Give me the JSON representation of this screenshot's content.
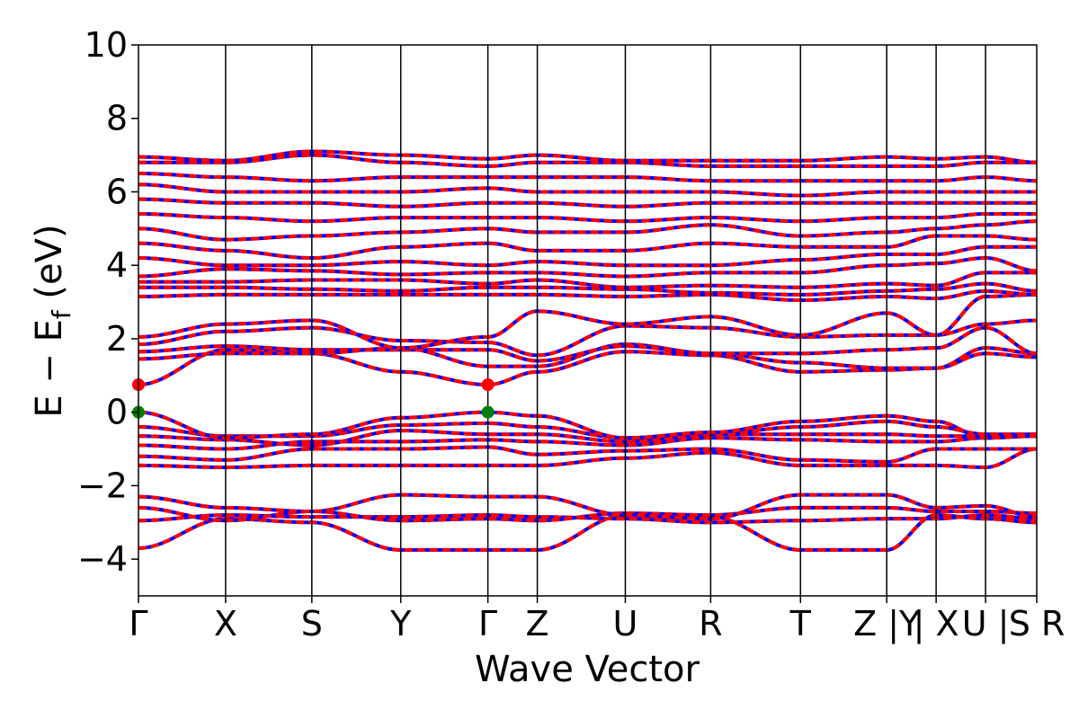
{
  "chart_data": {
    "type": "line",
    "xlabel": "Wave Vector",
    "ylabel": "E − E_f (eV)",
    "ylabel_main": "E  −  E",
    "ylabel_sub": "f",
    "ylabel_unit": "(eV)",
    "ylim": [
      -5,
      10
    ],
    "yticks": [
      -4,
      -2,
      0,
      2,
      4,
      6,
      8,
      10
    ],
    "ytick_labels": [
      "−4",
      "−2",
      "0",
      "2",
      "4",
      "6",
      "8",
      "10"
    ],
    "xlim": [
      0,
      10
    ],
    "kpoints": [
      {
        "x": 0.0,
        "label": "Γ"
      },
      {
        "x": 0.97,
        "label": "X"
      },
      {
        "x": 1.93,
        "label": "S"
      },
      {
        "x": 2.92,
        "label": "Y"
      },
      {
        "x": 3.89,
        "label": "Γ"
      },
      {
        "x": 4.44,
        "label": "Z"
      },
      {
        "x": 5.42,
        "label": "U"
      },
      {
        "x": 6.37,
        "label": "R"
      },
      {
        "x": 7.37,
        "label": "T"
      },
      {
        "x": 8.33,
        "label": "Z |Y"
      },
      {
        "x": 8.88,
        "label": "| X"
      },
      {
        "x": 9.43,
        "label": "U |"
      },
      {
        "x": 10.0,
        "label": "S R"
      }
    ],
    "line_colors": {
      "primary": "#ff0000",
      "secondary": "#0000ff"
    },
    "markers": [
      {
        "name": "CBM",
        "x": 0.0,
        "y": 0.75,
        "color": "#ff0000"
      },
      {
        "name": "CBM",
        "x": 3.89,
        "y": 0.75,
        "color": "#ff0000"
      },
      {
        "name": "VBM",
        "x": 0.0,
        "y": 0.0,
        "color": "#008000"
      },
      {
        "name": "VBM",
        "x": 3.89,
        "y": 0.0,
        "color": "#008000"
      }
    ],
    "bands": [
      {
        "name": "band-v1",
        "values": [
          -3.7,
          -2.9,
          -3.0,
          -3.75,
          -3.75,
          -3.75,
          -2.8,
          -2.85,
          -3.75,
          -3.75,
          -2.8,
          -2.9,
          -3.0
        ]
      },
      {
        "name": "band-v2",
        "values": [
          -2.95,
          -2.8,
          -2.85,
          -2.85,
          -2.8,
          -2.85,
          -2.9,
          -3.0,
          -2.95,
          -2.9,
          -2.9,
          -2.8,
          -2.9
        ]
      },
      {
        "name": "band-v3",
        "values": [
          -2.6,
          -2.95,
          -2.7,
          -2.95,
          -2.9,
          -2.95,
          -2.75,
          -2.8,
          -2.6,
          -2.6,
          -2.7,
          -2.7,
          -2.75
        ]
      },
      {
        "name": "band-v4",
        "values": [
          -2.3,
          -2.6,
          -2.7,
          -2.25,
          -2.3,
          -2.3,
          -2.8,
          -2.9,
          -2.25,
          -2.25,
          -2.6,
          -2.55,
          -2.85
        ]
      },
      {
        "name": "band-v5",
        "values": [
          -1.45,
          -1.5,
          -1.45,
          -1.45,
          -1.45,
          -1.45,
          -1.25,
          -1.1,
          -1.45,
          -1.45,
          -1.45,
          -1.5,
          -1.0
        ]
      },
      {
        "name": "band-v6",
        "values": [
          -1.2,
          -1.3,
          -1.0,
          -1.0,
          -0.95,
          -1.15,
          -1.05,
          -1.0,
          -1.3,
          -1.35,
          -1.0,
          -1.0,
          -1.0
        ]
      },
      {
        "name": "band-v7",
        "values": [
          -0.9,
          -1.0,
          -0.8,
          -0.8,
          -0.75,
          -0.8,
          -0.9,
          -0.7,
          -0.75,
          -0.8,
          -0.8,
          -0.7,
          -0.65
        ]
      },
      {
        "name": "band-v8",
        "values": [
          -0.65,
          -0.75,
          -0.9,
          -0.5,
          -0.6,
          -0.6,
          -0.8,
          -0.6,
          -0.6,
          -0.6,
          -0.65,
          -0.65,
          -0.65
        ]
      },
      {
        "name": "band-v9",
        "values": [
          -0.4,
          -0.65,
          -0.65,
          -0.35,
          -0.3,
          -0.4,
          -0.7,
          -0.6,
          -0.4,
          -0.25,
          -0.4,
          -0.6,
          -0.6
        ]
      },
      {
        "name": "band-v10",
        "values": [
          0.0,
          -0.7,
          -0.6,
          -0.15,
          0.0,
          -0.1,
          -0.7,
          -0.55,
          -0.25,
          -0.1,
          -0.25,
          -0.7,
          -0.6
        ]
      },
      {
        "name": "band-c1",
        "values": [
          0.75,
          1.7,
          1.6,
          1.1,
          0.75,
          1.1,
          1.65,
          1.55,
          1.1,
          1.15,
          1.2,
          1.6,
          1.5
        ]
      },
      {
        "name": "band-c2",
        "values": [
          1.45,
          1.6,
          1.6,
          1.75,
          1.25,
          1.25,
          1.85,
          1.6,
          1.35,
          1.2,
          1.2,
          1.75,
          1.6
        ]
      },
      {
        "name": "band-c3",
        "values": [
          1.65,
          1.8,
          1.7,
          1.7,
          1.7,
          1.4,
          1.8,
          1.6,
          1.6,
          1.7,
          1.75,
          2.3,
          1.6
        ]
      },
      {
        "name": "band-c4",
        "values": [
          1.85,
          2.2,
          2.3,
          1.95,
          1.9,
          1.55,
          2.35,
          2.3,
          2.05,
          2.1,
          2.1,
          2.4,
          2.5
        ]
      },
      {
        "name": "band-c5",
        "values": [
          2.05,
          2.4,
          2.5,
          1.75,
          2.05,
          2.75,
          2.4,
          2.6,
          2.1,
          2.7,
          2.1,
          3.15,
          3.2
        ]
      },
      {
        "name": "band-c6",
        "values": [
          3.15,
          3.2,
          3.2,
          3.2,
          3.2,
          3.2,
          3.15,
          3.2,
          3.05,
          3.15,
          3.1,
          3.3,
          3.2
        ]
      },
      {
        "name": "band-c7",
        "values": [
          3.4,
          3.4,
          3.35,
          3.3,
          3.4,
          3.4,
          3.35,
          3.25,
          3.2,
          3.3,
          3.35,
          3.5,
          3.3
        ]
      },
      {
        "name": "band-c8",
        "values": [
          3.55,
          3.55,
          3.6,
          3.6,
          3.5,
          3.6,
          3.4,
          3.45,
          3.4,
          3.5,
          3.45,
          3.8,
          3.8
        ]
      },
      {
        "name": "band-c9",
        "values": [
          3.7,
          3.9,
          3.85,
          3.75,
          3.8,
          3.8,
          3.7,
          3.8,
          3.8,
          4.0,
          4.05,
          4.2,
          3.85
        ]
      },
      {
        "name": "band-c10",
        "values": [
          4.2,
          4.0,
          4.0,
          4.1,
          4.0,
          4.1,
          4.0,
          4.0,
          4.15,
          4.3,
          4.3,
          4.5,
          4.5
        ]
      },
      {
        "name": "band-c11",
        "values": [
          4.6,
          4.4,
          4.2,
          4.5,
          4.6,
          4.4,
          4.4,
          4.6,
          4.5,
          4.5,
          4.8,
          4.8,
          4.7
        ]
      },
      {
        "name": "band-c12",
        "values": [
          5.0,
          4.7,
          4.8,
          4.9,
          5.0,
          4.9,
          4.9,
          5.1,
          4.8,
          4.9,
          5.0,
          5.1,
          5.2
        ]
      },
      {
        "name": "band-c13",
        "values": [
          5.4,
          5.3,
          5.2,
          5.3,
          5.3,
          5.3,
          5.2,
          5.3,
          5.2,
          5.3,
          5.3,
          5.4,
          5.4
        ]
      },
      {
        "name": "band-c14",
        "values": [
          5.8,
          5.7,
          5.7,
          5.6,
          5.7,
          5.7,
          5.6,
          5.7,
          5.7,
          5.7,
          5.7,
          5.7,
          5.7
        ]
      },
      {
        "name": "band-c15",
        "values": [
          6.2,
          6.0,
          6.0,
          6.0,
          6.1,
          6.0,
          6.0,
          6.0,
          5.9,
          6.0,
          6.0,
          6.0,
          6.0
        ]
      },
      {
        "name": "band-c16",
        "values": [
          6.5,
          6.4,
          6.3,
          6.4,
          6.4,
          6.4,
          6.4,
          6.3,
          6.3,
          6.3,
          6.3,
          6.4,
          6.3
        ]
      },
      {
        "name": "band-c17",
        "values": [
          6.8,
          6.8,
          7.0,
          6.8,
          6.7,
          6.8,
          6.8,
          6.7,
          6.7,
          6.7,
          6.7,
          6.8,
          6.8
        ]
      },
      {
        "name": "band-c18",
        "values": [
          6.95,
          6.85,
          7.1,
          7.0,
          6.9,
          7.0,
          6.85,
          6.85,
          6.85,
          6.95,
          6.9,
          6.95,
          6.8
        ]
      }
    ]
  }
}
